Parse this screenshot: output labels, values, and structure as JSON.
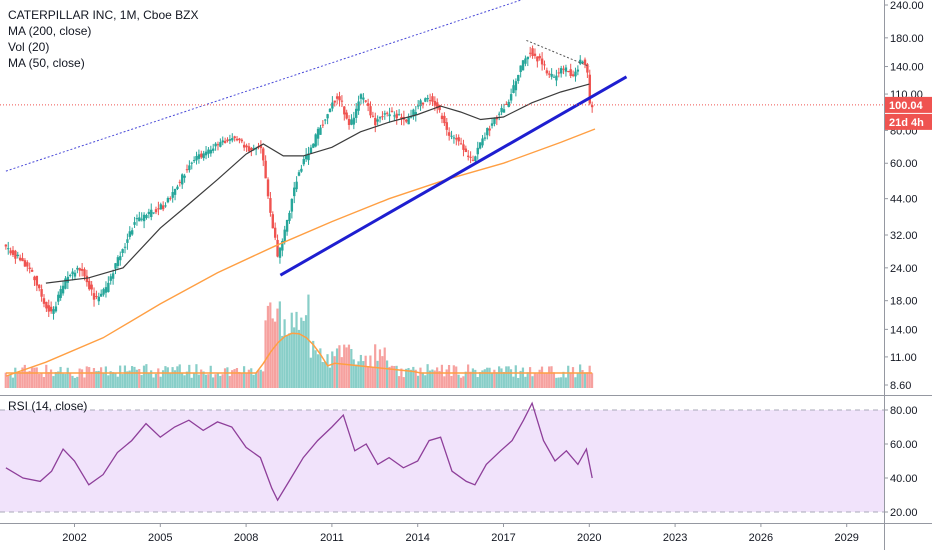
{
  "legend": {
    "title": "CATERPILLAR INC, 1M, Cboe BZX",
    "ma200": "MA (200, close)",
    "vol": "Vol (20)",
    "ma50": "MA (50, close)",
    "rsi": "RSI (14, close)"
  },
  "colors": {
    "up": "#26a69a",
    "down": "#ef5350",
    "ma200": "#ff9f43",
    "ma50": "#3c3c3c",
    "trendline": "#1e1ed0",
    "channel": "#4a4ad8",
    "rsi_line": "#8e3f9a",
    "rsi_fill": "#f1e3fb",
    "price_badge": "#ef5350"
  },
  "chart_data": {
    "type": "candlestick",
    "price_axis": {
      "scale": "log",
      "ticks": [
        "240.00",
        "180.00",
        "140.00",
        "110.00",
        "80.00",
        "60.00",
        "44.00",
        "32.00",
        "24.00",
        "18.00",
        "14.00",
        "11.00",
        "8.60"
      ]
    },
    "x_axis": {
      "ticks": [
        "2002",
        "2005",
        "2008",
        "2011",
        "2014",
        "2017",
        "2020",
        "2023",
        "2026",
        "2029"
      ]
    },
    "last_price": "100.04",
    "countdown": "21d 4h",
    "price_path": [
      [
        1999.6,
        29
      ],
      [
        2000.5,
        24
      ],
      [
        2001.0,
        18
      ],
      [
        2001.3,
        16
      ],
      [
        2001.8,
        22
      ],
      [
        2002.3,
        24
      ],
      [
        2002.8,
        18
      ],
      [
        2003.2,
        20
      ],
      [
        2003.7,
        27
      ],
      [
        2004.2,
        36
      ],
      [
        2004.8,
        39
      ],
      [
        2005.3,
        42
      ],
      [
        2005.8,
        52
      ],
      [
        2006.2,
        62
      ],
      [
        2006.7,
        66
      ],
      [
        2007.2,
        72
      ],
      [
        2007.7,
        75
      ],
      [
        2008.2,
        68
      ],
      [
        2008.6,
        70
      ],
      [
        2008.9,
        40
      ],
      [
        2009.2,
        26
      ],
      [
        2009.5,
        35
      ],
      [
        2009.9,
        55
      ],
      [
        2010.4,
        70
      ],
      [
        2010.9,
        92
      ],
      [
        2011.3,
        110
      ],
      [
        2011.7,
        82
      ],
      [
        2012.1,
        108
      ],
      [
        2012.6,
        86
      ],
      [
        2013.1,
        94
      ],
      [
        2013.7,
        86
      ],
      [
        2014.2,
        102
      ],
      [
        2014.6,
        106
      ],
      [
        2015.1,
        80
      ],
      [
        2015.6,
        70
      ],
      [
        2016.0,
        60
      ],
      [
        2016.4,
        76
      ],
      [
        2016.9,
        92
      ],
      [
        2017.3,
        105
      ],
      [
        2017.7,
        140
      ],
      [
        2018.0,
        162
      ],
      [
        2018.4,
        145
      ],
      [
        2018.8,
        126
      ],
      [
        2019.2,
        138
      ],
      [
        2019.5,
        128
      ],
      [
        2019.8,
        148
      ],
      [
        2020.0,
        138
      ],
      [
        2020.1,
        100
      ]
    ],
    "ma200_path": [
      [
        1999.6,
        9.3
      ],
      [
        2001.0,
        10.5
      ],
      [
        2003.0,
        13.0
      ],
      [
        2005.0,
        17.5
      ],
      [
        2007.0,
        23.0
      ],
      [
        2009.0,
        29.0
      ],
      [
        2011.0,
        36.0
      ],
      [
        2013.0,
        44.0
      ],
      [
        2015.0,
        52.0
      ],
      [
        2017.0,
        60.0
      ],
      [
        2019.0,
        72.0
      ],
      [
        2020.2,
        81.0
      ]
    ],
    "ma50_path": [
      [
        2001.0,
        21
      ],
      [
        2002.5,
        22
      ],
      [
        2003.7,
        24
      ],
      [
        2005.0,
        34
      ],
      [
        2006.0,
        42
      ],
      [
        2007.0,
        52
      ],
      [
        2008.0,
        65
      ],
      [
        2008.6,
        71
      ],
      [
        2009.3,
        64
      ],
      [
        2010.0,
        64
      ],
      [
        2011.0,
        69
      ],
      [
        2012.0,
        79
      ],
      [
        2013.0,
        86
      ],
      [
        2014.0,
        92
      ],
      [
        2014.8,
        99
      ],
      [
        2015.5,
        94
      ],
      [
        2016.2,
        88
      ],
      [
        2017.0,
        90
      ],
      [
        2018.0,
        102
      ],
      [
        2019.0,
        112
      ],
      [
        2020.0,
        120
      ]
    ],
    "trendline": [
      [
        2009.2,
        22.5
      ],
      [
        2021.3,
        128
      ]
    ],
    "channel_line": [
      [
        1999.6,
        56
      ],
      [
        2018.5,
        270
      ]
    ],
    "resistance_line": [
      [
        2017.8,
        176
      ],
      [
        2020.0,
        140
      ]
    ],
    "rsi": {
      "ticks": [
        "80.00",
        "60.00",
        "40.00",
        "20.00"
      ],
      "bands": [
        80,
        20
      ],
      "path": [
        [
          1999.6,
          46
        ],
        [
          2000.2,
          40
        ],
        [
          2000.8,
          38
        ],
        [
          2001.2,
          44
        ],
        [
          2001.6,
          57
        ],
        [
          2002.0,
          50
        ],
        [
          2002.5,
          36
        ],
        [
          2003.0,
          42
        ],
        [
          2003.5,
          55
        ],
        [
          2004.0,
          62
        ],
        [
          2004.5,
          72
        ],
        [
          2005.0,
          64
        ],
        [
          2005.5,
          70
        ],
        [
          2006.0,
          74
        ],
        [
          2006.5,
          68
        ],
        [
          2007.0,
          73
        ],
        [
          2007.5,
          70
        ],
        [
          2008.0,
          58
        ],
        [
          2008.5,
          52
        ],
        [
          2008.9,
          34
        ],
        [
          2009.1,
          27
        ],
        [
          2009.5,
          38
        ],
        [
          2010.0,
          52
        ],
        [
          2010.5,
          62
        ],
        [
          2011.0,
          70
        ],
        [
          2011.4,
          77
        ],
        [
          2011.8,
          56
        ],
        [
          2012.2,
          60
        ],
        [
          2012.6,
          48
        ],
        [
          2013.0,
          52
        ],
        [
          2013.5,
          46
        ],
        [
          2014.0,
          50
        ],
        [
          2014.4,
          62
        ],
        [
          2014.8,
          64
        ],
        [
          2015.2,
          44
        ],
        [
          2015.7,
          38
        ],
        [
          2016.0,
          36
        ],
        [
          2016.4,
          48
        ],
        [
          2016.9,
          56
        ],
        [
          2017.3,
          62
        ],
        [
          2017.7,
          74
        ],
        [
          2018.0,
          84
        ],
        [
          2018.4,
          62
        ],
        [
          2018.8,
          50
        ],
        [
          2019.2,
          56
        ],
        [
          2019.6,
          48
        ],
        [
          2019.9,
          57
        ],
        [
          2020.1,
          40
        ]
      ]
    }
  }
}
